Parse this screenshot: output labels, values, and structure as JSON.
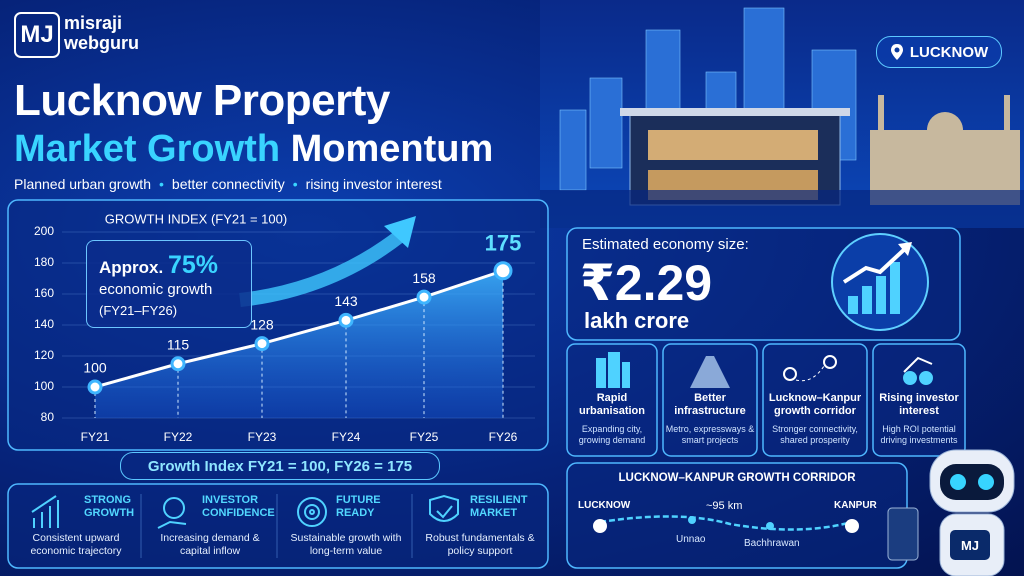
{
  "brand": {
    "mark": "MJ",
    "line1": "misraji",
    "line2": "webguru"
  },
  "location": "LUCKNOW",
  "header": {
    "title_line1": "Lucknow Property",
    "title_highlight": "Market Growth",
    "title_rest": "Momentum",
    "tagline": [
      "Planned urban growth",
      "better connectivity",
      "rising investor interest"
    ]
  },
  "chart_data": {
    "type": "line",
    "title": "GROWTH INDEX (FY21 = 100)",
    "categories": [
      "FY21",
      "FY22",
      "FY23",
      "FY24",
      "FY25",
      "FY26"
    ],
    "values": [
      100,
      115,
      128,
      143,
      158,
      175
    ],
    "color": "#ffffff",
    "ylim": [
      80,
      200
    ],
    "yticks": [
      80,
      100,
      120,
      140,
      160,
      180,
      200
    ],
    "grid": true,
    "annotation": {
      "prefix": "Approx.",
      "highlight": "75%",
      "line2": "economic growth",
      "line3": "(FY21–FY26)"
    },
    "footer": "Growth Index FY21 = 100, FY26 = 175"
  },
  "economy": {
    "label": "Estimated economy size:",
    "value": "₹2.29",
    "unit": "lakh crore"
  },
  "features": [
    {
      "title": "Rapid urbanisation",
      "desc": "Expanding city, growing demand"
    },
    {
      "title": "Better infrastructure",
      "desc": "Metro, expressways & smart projects"
    },
    {
      "title": "Lucknow–Kanpur growth corridor",
      "desc": "Stronger connectivity, shared prosperity"
    },
    {
      "title": "Rising investor interest",
      "desc": "High ROI potential driving investments"
    }
  ],
  "highlights": [
    {
      "title": "STRONG GROWTH",
      "desc": "Consistent upward economic trajectory"
    },
    {
      "title": "INVESTOR CONFIDENCE",
      "desc": "Increasing demand & capital inflow"
    },
    {
      "title": "FUTURE READY",
      "desc": "Sustainable growth with long-term value"
    },
    {
      "title": "RESILIENT MARKET",
      "desc": "Robust fundamentals & policy support"
    }
  ],
  "corridor": {
    "title": "LUCKNOW–KANPUR GROWTH CORRIDOR",
    "start": "LUCKNOW",
    "end": "KANPUR",
    "distance": "~95 km",
    "stops": [
      "Unnao",
      "Bachhrawan"
    ]
  }
}
